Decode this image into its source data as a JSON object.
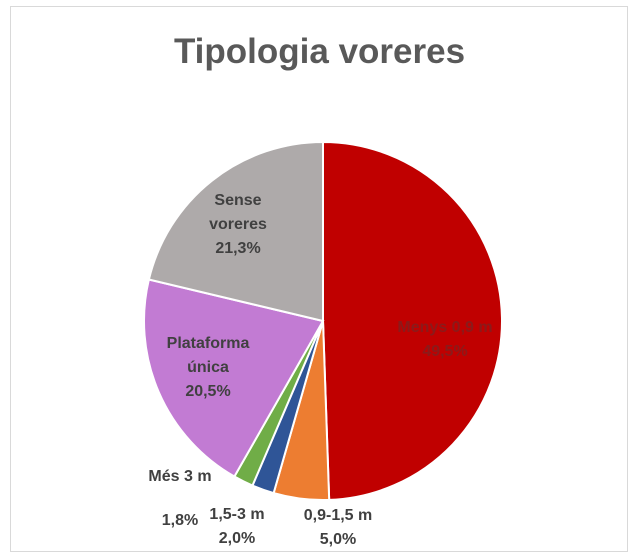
{
  "chart_data": {
    "type": "pie",
    "title": "Tipologia voreres",
    "categories": [
      "Menys 0,9 m",
      "0,9-1,5 m",
      "1,5-3 m",
      "Més 3 m",
      "Plataforma única",
      "Sense voreres"
    ],
    "values": [
      49.5,
      5.0,
      2.0,
      1.8,
      20.5,
      21.3
    ],
    "value_labels": [
      "49,5%",
      "5,0%",
      "2,0%",
      "1,8%",
      "20,5%",
      "21,3%"
    ],
    "colors": [
      "#c00000",
      "#ed7d31",
      "#2f5597",
      "#70ad47",
      "#c27bd3",
      "#aeaaaa"
    ]
  }
}
